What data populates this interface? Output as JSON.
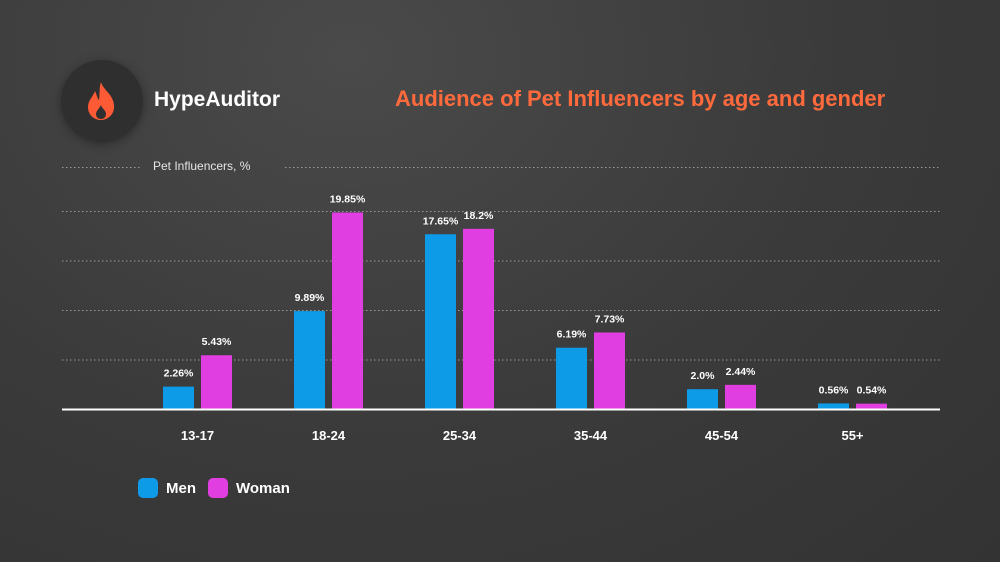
{
  "header": {
    "brand": "HypeAuditor",
    "logo_icon": "flame-icon",
    "title": "Audience of Pet Influencers by age and gender"
  },
  "colors": {
    "men": "#0d9be8",
    "woman": "#e03ee0",
    "title": "#ff6a3d",
    "logo": "#ff5a36"
  },
  "chart_data": {
    "type": "bar",
    "ylabel": "Pet Influencers, %",
    "xlabel": "",
    "ylim": [
      0,
      20
    ],
    "grid": true,
    "legend_position": "bottom-left",
    "categories": [
      "13-17",
      "18-24",
      "25-34",
      "35-44",
      "45-54",
      "55+"
    ],
    "series": [
      {
        "name": "Men",
        "values": [
          2.26,
          9.89,
          17.65,
          6.19,
          2.0,
          0.56
        ],
        "labels": [
          "2.26%",
          "9.89%",
          "17.65%",
          "6.19%",
          "2.0%",
          "0.56%"
        ]
      },
      {
        "name": "Woman",
        "values": [
          5.43,
          19.85,
          18.2,
          7.73,
          2.44,
          0.54
        ],
        "labels": [
          "5.43%",
          "19.85%",
          "18.2%",
          "7.73%",
          "2.44%",
          "0.54%"
        ]
      }
    ]
  }
}
